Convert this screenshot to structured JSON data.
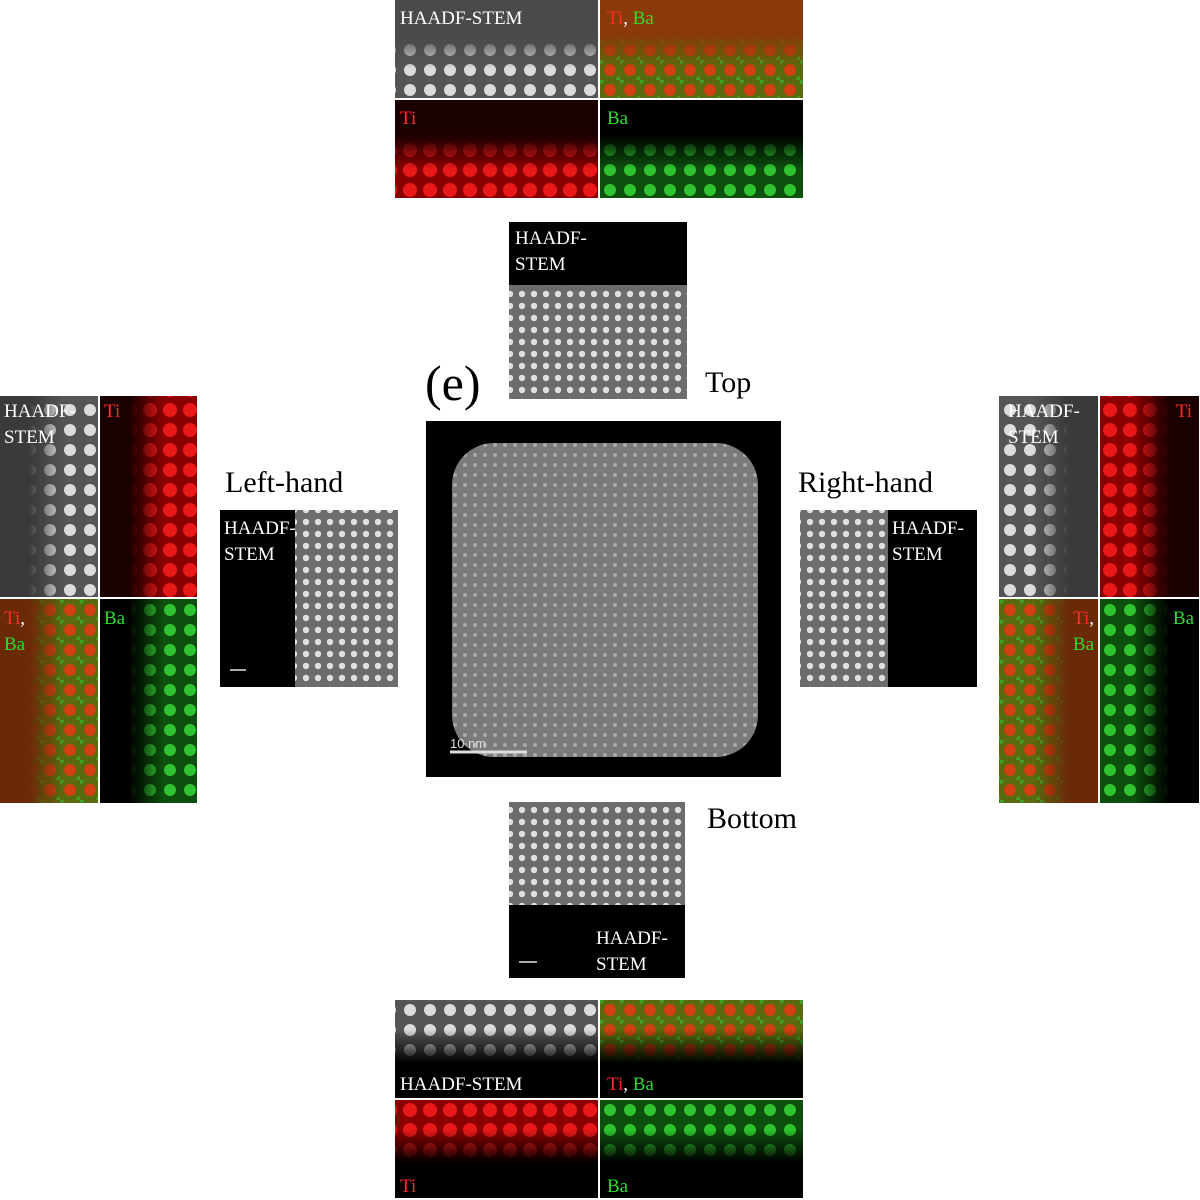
{
  "panel_label": "(e)",
  "directions": {
    "top": "Top",
    "left": "Left-hand",
    "right": "Right-hand",
    "bottom": "Bottom"
  },
  "center_image": {
    "scale_bar": "10 nm"
  },
  "insets": {
    "top": {
      "label": [
        "HAADF-",
        "STEM"
      ]
    },
    "left": {
      "label": [
        "HAADF-",
        "STEM"
      ]
    },
    "right": {
      "label": [
        "HAADF-",
        "STEM"
      ]
    },
    "bottom": {
      "label": [
        "HAADF-",
        "STEM"
      ]
    }
  },
  "maps": {
    "top": {
      "haadf": [
        "HAADF-STEM"
      ],
      "ti_ba": [
        "Ti",
        ",",
        "Ba"
      ],
      "ti": "Ti",
      "ba": "Ba"
    },
    "left": {
      "haadf": [
        "HAADF-",
        "STEM"
      ],
      "ti_ba": [
        "Ti",
        ",",
        "Ba"
      ],
      "ti": "Ti",
      "ba": "Ba"
    },
    "right": {
      "haadf": [
        "HAADF-",
        "STEM"
      ],
      "ti_ba": [
        "Ti",
        ",",
        "Ba"
      ],
      "ti": "Ti",
      "ba": "Ba"
    },
    "bottom": {
      "haadf": [
        "HAADF-STEM"
      ],
      "ti_ba": [
        "Ti",
        ",",
        "Ba"
      ],
      "ti": "Ti",
      "ba": "Ba"
    }
  }
}
